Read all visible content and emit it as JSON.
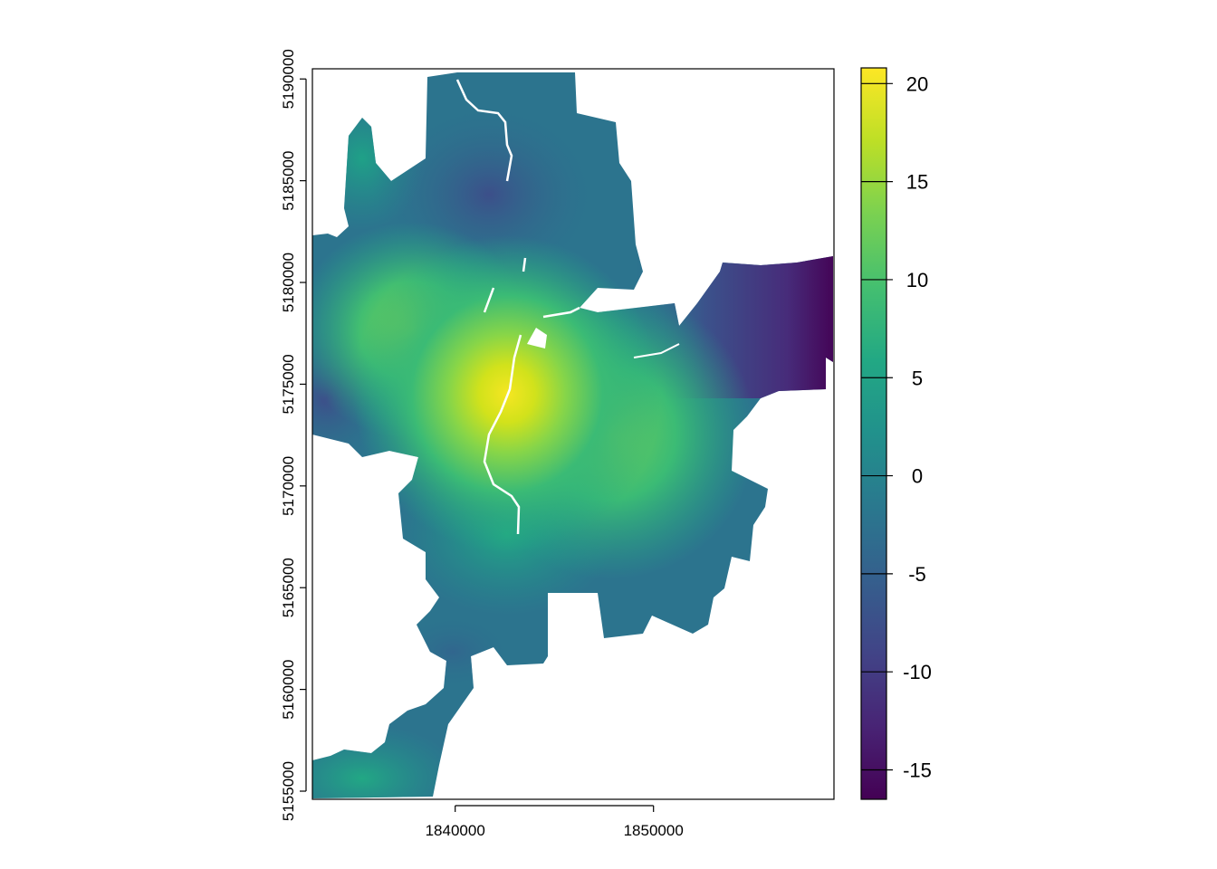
{
  "chart_data": {
    "type": "heatmap",
    "title": "",
    "xlabel": "",
    "ylabel": "",
    "x_ticks": [
      1840000,
      1850000
    ],
    "y_ticks": [
      5155000,
      5160000,
      5165000,
      5170000,
      5175000,
      5180000,
      5185000,
      5190000
    ],
    "xlim": [
      1832800,
      1859100
    ],
    "ylim": [
      5154600,
      5190500
    ],
    "colorbar": {
      "ticks": [
        -15,
        -10,
        -5,
        0,
        5,
        10,
        15,
        20
      ],
      "range": [
        -16.5,
        20.8
      ],
      "palette": "viridis",
      "stops": [
        "#440154",
        "#482475",
        "#414487",
        "#355f8d",
        "#2a788e",
        "#21918c",
        "#22a884",
        "#44bf70",
        "#7ad151",
        "#bddf26",
        "#fde725"
      ]
    },
    "hotspots": [
      {
        "x": 1842900,
        "y": 5174300,
        "value": 20.5
      },
      {
        "x": 1848000,
        "y": 5172200,
        "value": 12
      },
      {
        "x": 1838500,
        "y": 5177200,
        "value": 11.5
      }
    ],
    "min_region": {
      "x": 1858500,
      "y": 5179500,
      "value": -16
    }
  }
}
